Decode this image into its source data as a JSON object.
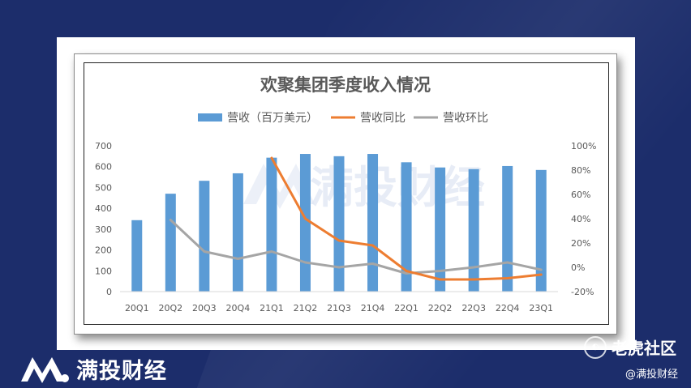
{
  "footer": {
    "brand": "满投财经",
    "community": "老虎社区",
    "handle": "@满投财经"
  },
  "watermark": "满投财经",
  "colors": {
    "bar": "#5b9bd5",
    "yoy": "#ed7d31",
    "qoq": "#a5a5a5",
    "background": "#1c2d6b"
  },
  "chart_data": {
    "type": "bar",
    "title": "欢聚集团季度收入情况",
    "legend_position": "top",
    "grid": false,
    "categories": [
      "20Q1",
      "20Q2",
      "20Q3",
      "20Q4",
      "21Q1",
      "21Q2",
      "21Q3",
      "21Q4",
      "22Q1",
      "22Q2",
      "22Q3",
      "22Q4",
      "23Q1"
    ],
    "ylim": [
      0,
      700
    ],
    "yticks": [
      "0",
      "100",
      "200",
      "300",
      "400",
      "500",
      "600",
      "700"
    ],
    "y2lim": [
      -0.2,
      1.0
    ],
    "y2ticks": [
      "-20%",
      "0%",
      "20%",
      "40%",
      "60%",
      "80%",
      "100%"
    ],
    "series": [
      {
        "name": "营收（百万美元）",
        "type": "bar",
        "axis": "left",
        "values": [
          343,
          470,
          532,
          568,
          643,
          661,
          650,
          661,
          621,
          596,
          588,
          603,
          584
        ]
      },
      {
        "name": "营收同比",
        "type": "line",
        "axis": "right",
        "values": [
          null,
          null,
          null,
          null,
          0.9,
          0.4,
          0.22,
          0.18,
          -0.03,
          -0.1,
          -0.1,
          -0.09,
          -0.06
        ]
      },
      {
        "name": "营收环比",
        "type": "line",
        "axis": "right",
        "values": [
          null,
          0.39,
          0.13,
          0.07,
          0.13,
          0.04,
          0.0,
          0.03,
          -0.05,
          -0.03,
          0.0,
          0.04,
          -0.02
        ]
      }
    ]
  }
}
